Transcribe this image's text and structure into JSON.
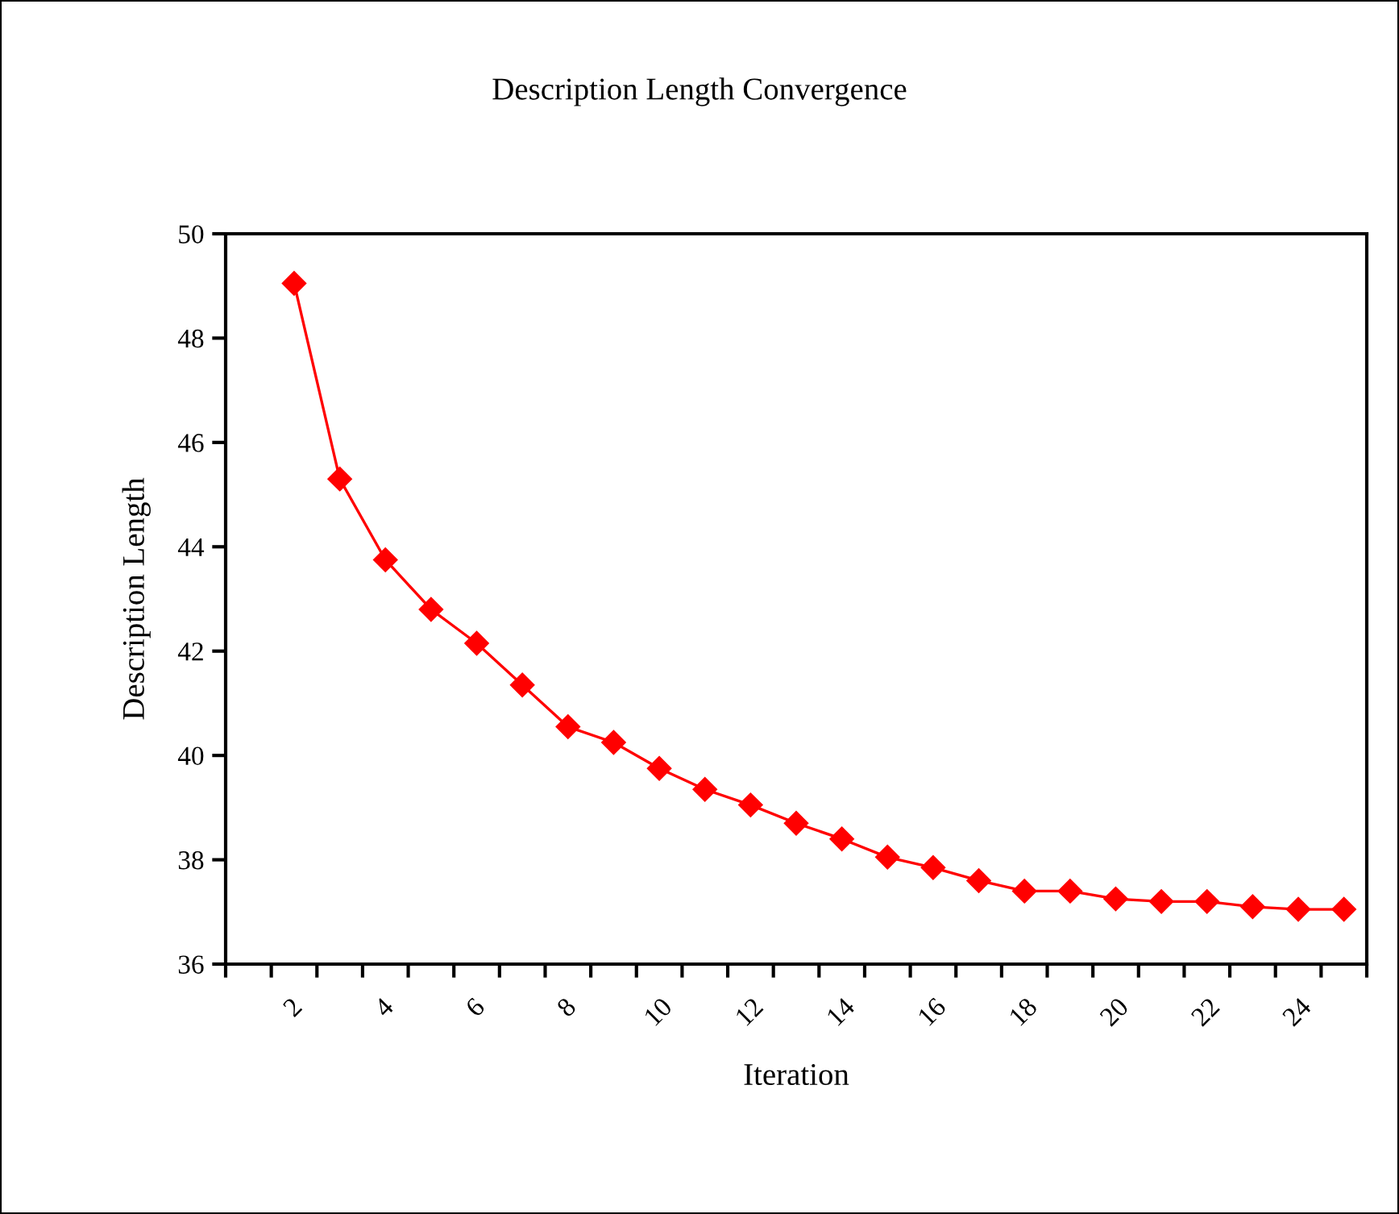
{
  "chart_data": {
    "type": "line",
    "title": "Description Length Convergence",
    "xlabel": "Iteration",
    "ylabel": "Description Length",
    "categories": [
      null,
      "2",
      null,
      "4",
      null,
      "6",
      null,
      "8",
      null,
      "10",
      null,
      "12",
      null,
      "14",
      null,
      "16",
      null,
      "18",
      null,
      "20",
      null,
      "22",
      null,
      "24",
      null
    ],
    "series": [
      {
        "color": "#ff0000",
        "values": [
          null,
          49.05,
          45.3,
          43.75,
          42.8,
          42.15,
          41.35,
          40.55,
          40.25,
          39.75,
          39.35,
          39.05,
          38.7,
          38.4,
          38.05,
          37.85,
          37.6,
          37.4,
          37.4,
          37.25,
          37.2,
          37.2,
          37.1,
          37.05,
          37.05
        ]
      }
    ],
    "ylim": [
      36,
      50
    ],
    "yticks": [
      36,
      38,
      40,
      42,
      44,
      46,
      48,
      50
    ],
    "grid": false,
    "legend": false,
    "marker": "diamond",
    "line_style": "solid"
  }
}
